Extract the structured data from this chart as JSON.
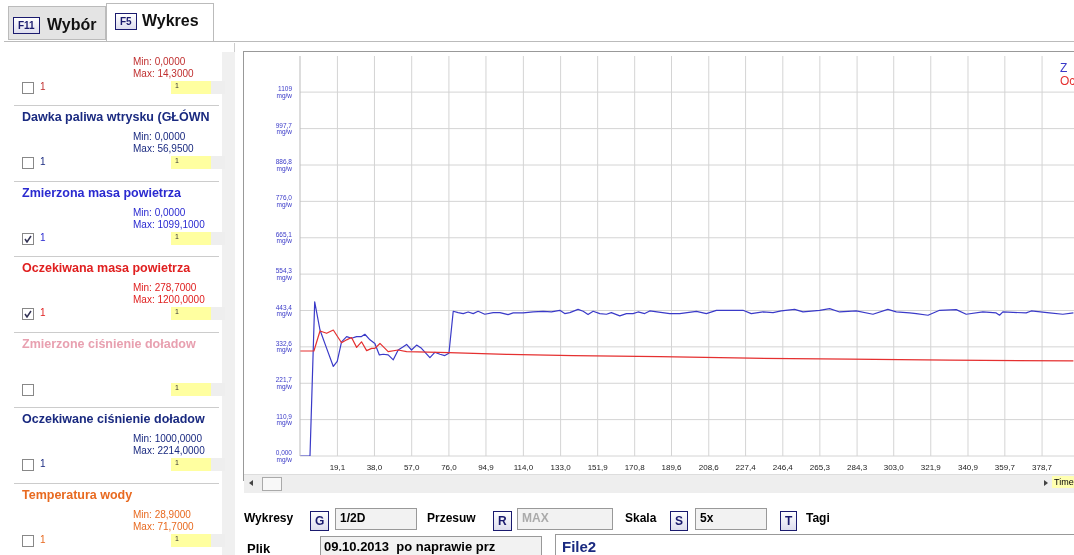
{
  "chart_data": {
    "type": "line",
    "xlabel": "Time",
    "legend": "top right",
    "grid": true,
    "marker": "none",
    "line_style": "solid",
    "xlim": [
      0,
      395
    ],
    "ylim": [
      0,
      1219
    ],
    "xticks": [
      {
        "value": 19.1,
        "label": "19,1"
      },
      {
        "value": 38.0,
        "label": "38,0"
      },
      {
        "value": 57.0,
        "label": "57,0"
      },
      {
        "value": 76.0,
        "label": "76,0"
      },
      {
        "value": 94.9,
        "label": "94,9"
      },
      {
        "value": 114.0,
        "label": "114,0"
      },
      {
        "value": 133.0,
        "label": "133,0"
      },
      {
        "value": 151.9,
        "label": "151,9"
      },
      {
        "value": 170.8,
        "label": "170,8"
      },
      {
        "value": 189.6,
        "label": "189,6"
      },
      {
        "value": 208.6,
        "label": "208,6"
      },
      {
        "value": 227.4,
        "label": "227,4"
      },
      {
        "value": 246.4,
        "label": "246,4"
      },
      {
        "value": 265.3,
        "label": "265,3"
      },
      {
        "value": 284.3,
        "label": "284,3"
      },
      {
        "value": 303.0,
        "label": "303,0"
      },
      {
        "value": 321.9,
        "label": "321,9"
      },
      {
        "value": 340.9,
        "label": "340,9"
      },
      {
        "value": 359.7,
        "label": "359,7"
      },
      {
        "value": 378.7,
        "label": "378,7"
      }
    ],
    "yticks": [
      {
        "value": 0,
        "label": "0,000 mg/w"
      },
      {
        "value": 110.9,
        "label": "110,9 mg/w"
      },
      {
        "value": 221.7,
        "label": "221,7 mg/w"
      },
      {
        "value": 332.6,
        "label": "332,6 mg/w"
      },
      {
        "value": 443.4,
        "label": "443,4 mg/w"
      },
      {
        "value": 554.3,
        "label": "554,3 mg/w"
      },
      {
        "value": 665.1,
        "label": "665,1 mg/w"
      },
      {
        "value": 776.0,
        "label": "776,0 mg/w"
      },
      {
        "value": 886.8,
        "label": "886,8 mg/w"
      },
      {
        "value": 997.7,
        "label": "997,7 mg/w"
      },
      {
        "value": 1109,
        "label": "1109 mg/w"
      }
    ],
    "series": [
      {
        "name": "Z",
        "color": "#3a3ac8",
        "x": [
          0,
          5.1,
          7.5,
          10.2,
          13.6,
          17.0,
          19.0,
          21.2,
          23.8,
          26.3,
          28.9,
          31.4,
          33.1,
          35.7,
          38.2,
          40.5,
          42.5,
          45.0,
          47.6,
          50.1,
          52.7,
          54.4,
          56.9,
          59.5,
          62.0,
          64.3,
          66.3,
          68.8,
          71.4,
          73.9,
          76.0,
          78.2,
          80.7,
          83.3,
          85.8,
          88.4,
          90.9,
          94.3,
          98.6,
          102.0,
          106.2,
          108.8,
          113.9,
          119.0,
          124.1,
          128.3,
          132.6,
          135.1,
          137.7,
          141.9,
          144.5,
          147.0,
          149.6,
          153.0,
          156.4,
          158.9,
          163.2,
          166.6,
          170.0,
          172.5,
          175.9,
          178.5,
          188.7,
          193.8,
          202.3,
          207.4,
          212.5,
          219.3,
          226.1,
          230.3,
          236.3,
          241.4,
          245.6,
          252.4,
          256.7,
          265.2,
          270.3,
          275.4,
          283.9,
          292.4,
          300.0,
          304.3,
          311.1,
          314.5,
          320.5,
          326.4,
          334.9,
          340.0,
          348.5,
          355.3,
          357.0,
          358.7,
          370.6,
          373.2,
          382.5,
          389.3,
          394.7
        ],
        "values": [
          0,
          0,
          470,
          384,
          328,
          273,
          288,
          348,
          364,
          359,
          364,
          364,
          371,
          354,
          343,
          308,
          310,
          308,
          293,
          323,
          333,
          340,
          323,
          338,
          328,
          313,
          300,
          316,
          310,
          306,
          313,
          441,
          437,
          434,
          439,
          434,
          441,
          432,
          437,
          437,
          431,
          436,
          436,
          439,
          441,
          439,
          444,
          434,
          437,
          447,
          441,
          431,
          441,
          434,
          432,
          437,
          427,
          434,
          434,
          439,
          434,
          442,
          434,
          434,
          441,
          434,
          444,
          444,
          444,
          434,
          439,
          437,
          442,
          447,
          439,
          444,
          449,
          439,
          442,
          432,
          447,
          439,
          436,
          434,
          429,
          444,
          446,
          432,
          439,
          436,
          429,
          439,
          436,
          442,
          436,
          432,
          436
        ]
      },
      {
        "name": "Oc",
        "color": "#e53030",
        "x": [
          0,
          7.1,
          10.2,
          13.6,
          17.0,
          21.2,
          23.8,
          26.3,
          28.9,
          31.4,
          34.0,
          36.6,
          38.2,
          40.8,
          45.0,
          50.1,
          54.4,
          76.0,
          105.4,
          139.4,
          183.6,
          229.5,
          280.5,
          331.5,
          394.7
        ],
        "values": [
          320,
          320,
          381,
          374,
          384,
          345,
          354,
          361,
          331,
          348,
          321,
          328,
          328,
          343,
          318,
          323,
          318,
          315,
          310,
          306,
          303,
          298,
          295,
          292,
          290
        ]
      }
    ],
    "annotations": [
      "F11",
      "Wybór",
      "F5",
      "Wykres",
      "Min: 0,0000",
      "Max: 14,3000",
      "1",
      "1",
      "Dawka paliwa wtrysku (GŁÓWN",
      "Min: 0,0000",
      "Max: 56,9500",
      "1",
      "1",
      "Zmierzona masa powietrza",
      "Min: 0,0000",
      "Max: 1099,1000",
      "1",
      "1",
      "Oczekiwana masa powietrza",
      "Min: 278,7000",
      "Max: 1200,0000",
      "1",
      "1",
      "Zmierzone ciśnienie doładow",
      "1",
      "Oczekiwane ciśnienie doładow",
      "Min: 1000,0000",
      "Max: 2214,0000",
      "1",
      "1",
      "Temperatura wody",
      "Min: 28,9000",
      "Max: 71,7000",
      "1",
      "1",
      "Wykresy",
      "G",
      "1/2D",
      "Przesuw",
      "R",
      "MAX",
      "Skala",
      "S",
      "5x",
      "T",
      "Tagi",
      "Plik",
      "09.10.2013  po naprawie prz",
      "File2"
    ]
  }
}
